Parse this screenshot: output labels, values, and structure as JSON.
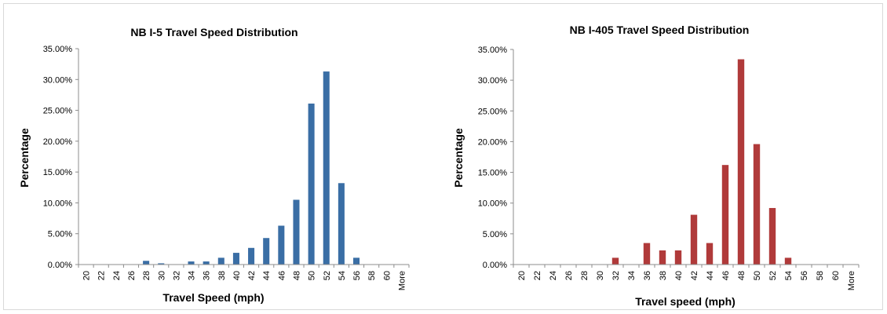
{
  "chart_data": [
    {
      "type": "bar",
      "title": "NB I-5 Travel Speed Distribution",
      "xlabel": "Travel Speed (mph)",
      "ylabel": "Percentage",
      "ylim": [
        0,
        35
      ],
      "yticks": [
        "0.00%",
        "5.00%",
        "10.00%",
        "15.00%",
        "20.00%",
        "25.00%",
        "30.00%",
        "35.00%"
      ],
      "categories": [
        "20",
        "22",
        "24",
        "26",
        "28",
        "30",
        "32",
        "34",
        "36",
        "38",
        "40",
        "42",
        "44",
        "46",
        "48",
        "50",
        "52",
        "54",
        "56",
        "58",
        "60",
        "More"
      ],
      "values": [
        0,
        0,
        0,
        0,
        0.6,
        0.2,
        0,
        0.5,
        0.5,
        1.1,
        1.9,
        2.7,
        4.3,
        6.3,
        10.5,
        26.1,
        31.3,
        13.2,
        1.1,
        0,
        0,
        0
      ],
      "grid": false,
      "legend": "none",
      "color": "#3a6ea5"
    },
    {
      "type": "bar",
      "title": "NB I-405 Travel Speed Distribution",
      "xlabel": "Travel speed (mph)",
      "ylabel": "Percentage",
      "ylim": [
        0,
        35
      ],
      "yticks": [
        "0.00%",
        "5.00%",
        "10.00%",
        "15.00%",
        "20.00%",
        "25.00%",
        "30.00%",
        "35.00%"
      ],
      "categories": [
        "20",
        "22",
        "24",
        "26",
        "28",
        "30",
        "32",
        "34",
        "36",
        "38",
        "40",
        "42",
        "44",
        "46",
        "48",
        "50",
        "52",
        "54",
        "56",
        "58",
        "60",
        "More"
      ],
      "values": [
        0,
        0,
        0,
        0,
        0,
        0,
        1.1,
        0,
        3.5,
        2.3,
        2.3,
        8.1,
        3.5,
        16.2,
        33.4,
        19.6,
        9.2,
        1.1,
        0,
        0,
        0,
        0
      ],
      "grid": false,
      "legend": "none",
      "color": "#b03a3a"
    }
  ]
}
